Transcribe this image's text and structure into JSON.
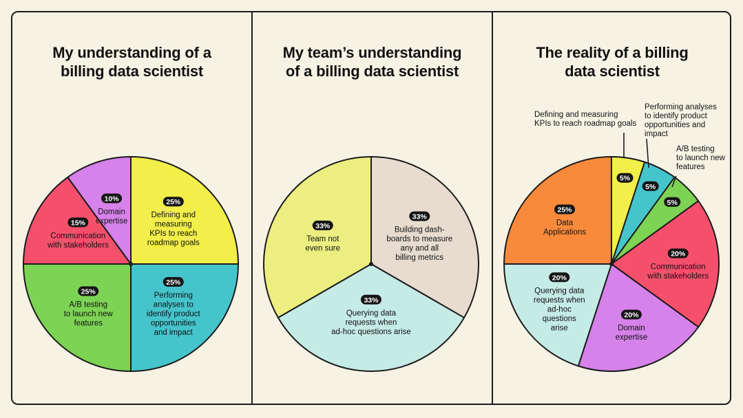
{
  "panels": [
    {
      "title_lines": [
        "My understanding of a",
        "billing data scientist"
      ]
    },
    {
      "title_lines": [
        "My team’s understanding",
        "of a billing data scientist"
      ]
    },
    {
      "title_lines": [
        "The reality of a billing",
        "data scientist"
      ]
    }
  ],
  "chart_data": [
    {
      "type": "pie",
      "title": "My understanding of a billing data scientist",
      "slices": [
        {
          "label": "Defining and measuring KPIs to reach roadmap goals",
          "lines": [
            "Defining and",
            "measuring",
            "KPIs to reach",
            "roadmap goals"
          ],
          "value": 25,
          "pct_text": "25%",
          "color": "#f2ee4a"
        },
        {
          "label": "Performing analyses to identify product opportunities and impact",
          "lines": [
            "Performing",
            "analyses to",
            "identify product",
            "opportunities",
            "and impact"
          ],
          "value": 25,
          "pct_text": "25%",
          "color": "#46c4cc"
        },
        {
          "label": "A/B testing to launch new features",
          "lines": [
            "A/B testing",
            "to launch new",
            "features"
          ],
          "value": 25,
          "pct_text": "25%",
          "color": "#7dd354"
        },
        {
          "label": "Communication with stakeholders",
          "lines": [
            "Communication",
            "with stakeholders"
          ],
          "value": 15,
          "pct_text": "15%",
          "color": "#f4506c"
        },
        {
          "label": "Domain expertise",
          "lines": [
            "Domain",
            "expertise"
          ],
          "value": 10,
          "pct_text": "10%",
          "color": "#d682ea"
        }
      ]
    },
    {
      "type": "pie",
      "title": "My team’s understanding of a billing data scientist",
      "slices": [
        {
          "label": "Building dashboards to measure any and all billing metrics",
          "lines": [
            "Building dash-",
            "boards to measure",
            "any and all",
            "billing metrics"
          ],
          "value": 33.34,
          "pct_text": "33%",
          "color": "#e8dcd0"
        },
        {
          "label": "Querying data requests when ad-hoc questions arise",
          "lines": [
            "Querying data",
            "requests when",
            "ad-hoc questions arise"
          ],
          "value": 33.33,
          "pct_text": "33%",
          "color": "#c5ebe5"
        },
        {
          "label": "Team not even sure",
          "lines": [
            "Team not",
            "even sure"
          ],
          "value": 33.33,
          "pct_text": "33%",
          "color": "#ecef80"
        }
      ]
    },
    {
      "type": "pie",
      "title": "The reality of a billing data scientist",
      "slices": [
        {
          "label": "Defining and measuring KPIs to reach roadmap goals",
          "lines": [],
          "value": 5,
          "pct_text": "5%",
          "color": "#f2ee4a",
          "callout": [
            "Defining and measuring",
            "KPIs to reach roadmap goals"
          ]
        },
        {
          "label": "Performing analyses to identify product opportunities and impact",
          "lines": [],
          "value": 5,
          "pct_text": "5%",
          "color": "#46c4cc",
          "callout": [
            "Performing analyses",
            "to identify product",
            "opportunities and",
            "impact"
          ]
        },
        {
          "label": "A/B testing to launch new features",
          "lines": [],
          "value": 5,
          "pct_text": "5%",
          "color": "#7dd354",
          "callout": [
            "A/B testing",
            "to launch new",
            "features"
          ]
        },
        {
          "label": "Communication with stakeholders",
          "lines": [
            "Communication",
            "with stakeholders"
          ],
          "value": 20,
          "pct_text": "20%",
          "color": "#f4506c"
        },
        {
          "label": "Domain expertise",
          "lines": [
            "Domain",
            "expertise"
          ],
          "value": 20,
          "pct_text": "20%",
          "color": "#d682ea"
        },
        {
          "label": "Querying data requests when ad-hoc questions arise",
          "lines": [
            "Querying data",
            "requests when",
            "ad-hoc",
            "questions",
            "arise"
          ],
          "value": 20,
          "pct_text": "20%",
          "color": "#c5ebe5"
        },
        {
          "label": "Data Applications",
          "lines": [
            "Data",
            "Applications"
          ],
          "value": 25,
          "pct_text": "25%",
          "color": "#f98a3c"
        }
      ]
    }
  ]
}
